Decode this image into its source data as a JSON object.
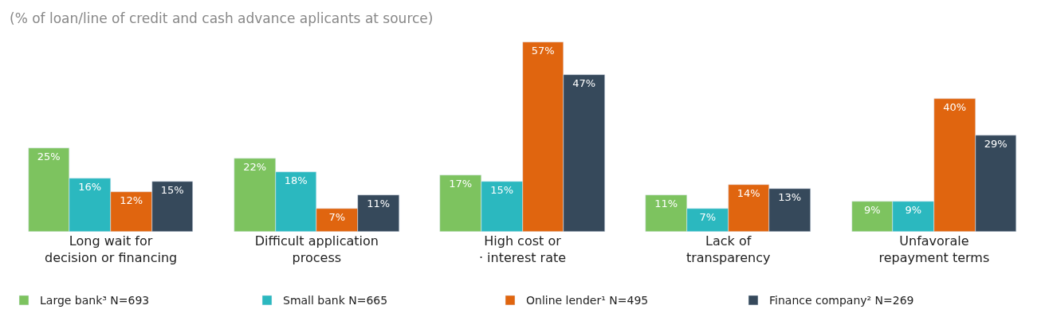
{
  "chart_data": {
    "type": "bar",
    "subtitle": "(% of loan/line of credit and cash advance aplicants at source)",
    "categories": [
      "Long wait for\ndecision or financing",
      "Difficult application\nprocess",
      "High cost or\n· interest rate",
      "Lack of\ntransparency",
      "Unfavorale\nrepayment terms"
    ],
    "series": [
      {
        "name": "Large bank³ N=693",
        "color": "#7dc35f",
        "values": [
          25,
          22,
          17,
          11,
          9
        ],
        "value_labels": [
          "25%",
          "22%",
          "17%",
          "11%",
          "9%"
        ]
      },
      {
        "name": "Small bank N=665",
        "color": "#2bb8bf",
        "values": [
          16,
          18,
          15,
          7,
          9
        ],
        "value_labels": [
          "16%",
          "18%",
          "15%",
          "7%",
          "9%"
        ]
      },
      {
        "name": "Online lender¹ N=495",
        "color": "#e0650f",
        "values": [
          12,
          7,
          57,
          14,
          40
        ],
        "value_labels": [
          "12%",
          "7%",
          "57%",
          "14%",
          "40%"
        ]
      },
      {
        "name": "Finance company² N=269",
        "color": "#36495b",
        "values": [
          15,
          11,
          47,
          13,
          29
        ],
        "value_labels": [
          "15%",
          "11%",
          "47%",
          "13%",
          "29%"
        ]
      }
    ],
    "legend": "bottom",
    "tick_labels": "x"
  }
}
